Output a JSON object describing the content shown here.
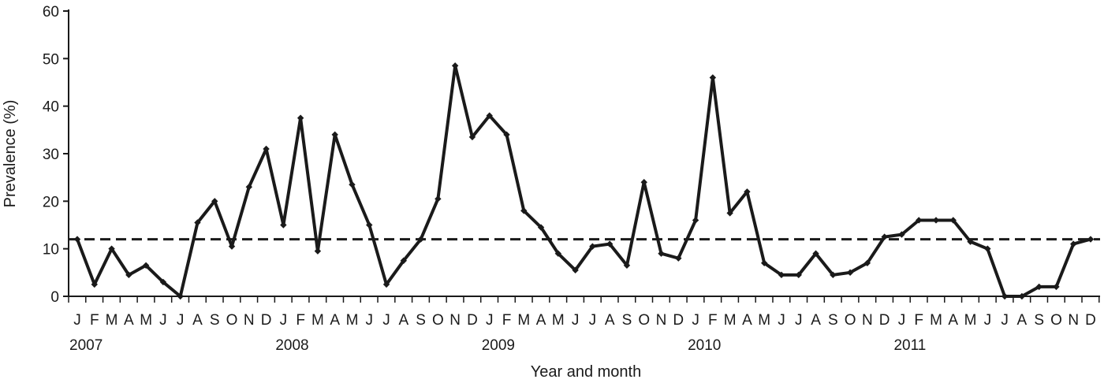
{
  "chart_data": {
    "type": "line",
    "xlabel": "Year and month",
    "ylabel": "Prevalence (%)",
    "ylim": [
      0,
      60
    ],
    "yticks": [
      "0",
      "10",
      "20",
      "30",
      "40",
      "50",
      "60"
    ],
    "month_labels": [
      "J",
      "F",
      "M",
      "A",
      "M",
      "J",
      "J",
      "A",
      "S",
      "O",
      "N",
      "D"
    ],
    "years": [
      "2007",
      "2008",
      "2009",
      "2010",
      "2011"
    ],
    "reference_line": {
      "value": 12,
      "style": "dashed"
    },
    "series_color": "#1a1a1a",
    "series": [
      {
        "values": [
          12,
          2.5,
          10,
          4.5,
          6.5,
          3,
          0,
          15.5,
          20,
          10.5,
          23,
          31,
          15,
          37.5,
          9.5,
          34,
          23.5,
          15,
          2.5,
          7.5,
          12,
          20.5,
          48.5,
          33.5,
          38,
          34,
          18,
          14.5,
          9,
          5.5,
          10.5,
          11,
          6.5,
          24,
          9,
          8,
          16,
          46,
          17.5,
          22,
          7,
          4.5,
          4.5,
          9,
          4.5,
          5,
          7,
          12.5,
          13,
          16,
          16,
          16,
          11.5,
          10,
          0,
          0,
          2,
          2,
          11,
          12
        ]
      }
    ]
  }
}
